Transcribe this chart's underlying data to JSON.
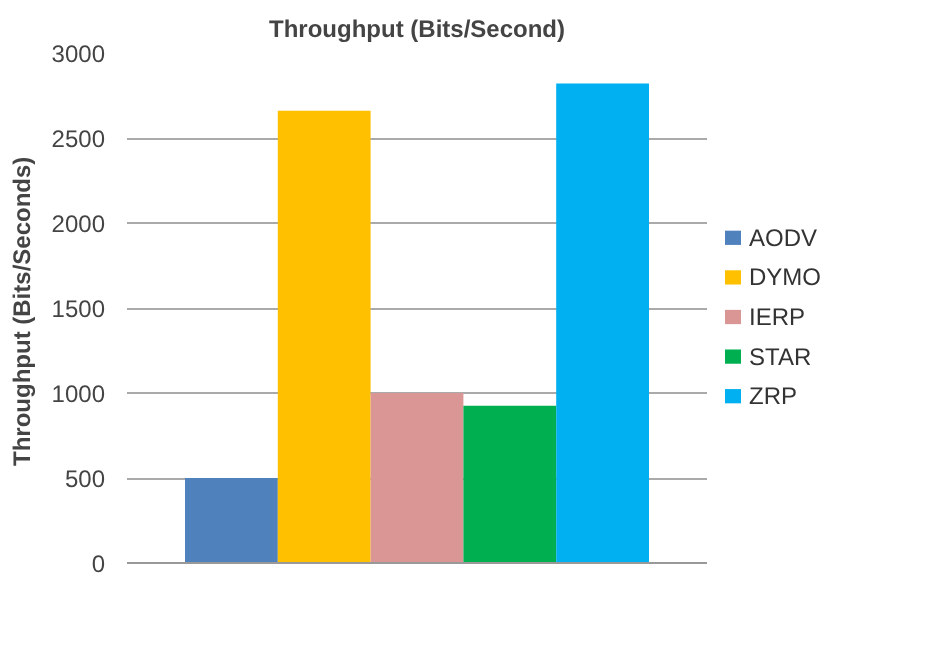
{
  "chart_data": {
    "type": "bar",
    "title": "Throughput (Bits/Second)",
    "ylabel": "Throughput  (Bits/Seconds)",
    "categories": [
      null
    ],
    "series": [
      {
        "name": "AODV",
        "color": "#4f81bd",
        "values": [
          500
        ]
      },
      {
        "name": "DYMO",
        "color": "#ffc000",
        "values": [
          2660
        ]
      },
      {
        "name": "IERP",
        "color": "#d99694",
        "values": [
          1000
        ]
      },
      {
        "name": "STAR",
        "color": "#00b050",
        "values": [
          925
        ]
      },
      {
        "name": "ZRP",
        "color": "#00b0f0",
        "values": [
          2820
        ]
      }
    ],
    "ylim": [
      0,
      3000
    ],
    "yticks": [
      0,
      500,
      1000,
      1500,
      2000,
      2500,
      3000
    ],
    "grid": "y",
    "legend": "right"
  }
}
